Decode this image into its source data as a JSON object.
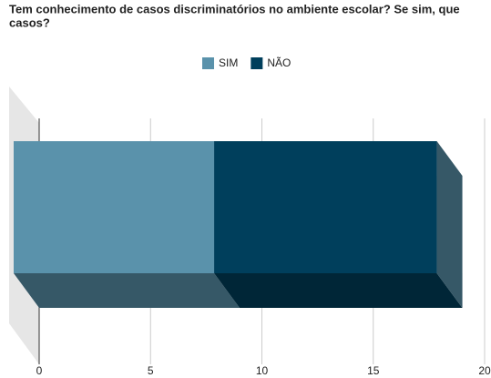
{
  "chart_data": {
    "type": "bar3d_stacked_horizontal",
    "title": "Tem conhecimento de casos discriminatórios no ambiente escolar? Se sim, que casos?",
    "categories": [
      null
    ],
    "series": [
      {
        "name": "SIM",
        "color": "#5a92ab",
        "values": [
          9
        ]
      },
      {
        "name": "NÃO",
        "color": "#003f5c",
        "values": [
          10
        ]
      }
    ],
    "xlim": [
      0,
      20
    ],
    "xticks": [
      0,
      5,
      10,
      15,
      20
    ],
    "grid": true,
    "legend": "top"
  }
}
